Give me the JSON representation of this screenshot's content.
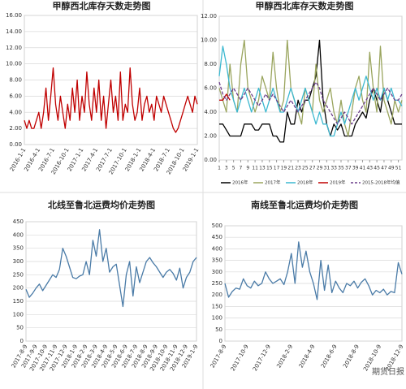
{
  "chart_data": [
    {
      "type": "line",
      "title": "甲醇西北库存天数走势图",
      "color": "#c00000",
      "categories": [
        "2016-1-1",
        null,
        null,
        null,
        null,
        null,
        "2016-4-1",
        null,
        null,
        null,
        null,
        null,
        "2016-7-1",
        null,
        null,
        null,
        null,
        null,
        "2016-10-1",
        null,
        null,
        null,
        null,
        null,
        "2017-1-1",
        null,
        null,
        null,
        null,
        null,
        "2017-4-1",
        null,
        null,
        null,
        null,
        null,
        "2017-7-1",
        null,
        null,
        null,
        null,
        null,
        "2017-10-1",
        null,
        null,
        null,
        null,
        null,
        "2018-1-1",
        null,
        null,
        null,
        null,
        null,
        "2018-4-1",
        null,
        null,
        null,
        null,
        null,
        "2018-7-1",
        null,
        null,
        null,
        null,
        null,
        "2018-10-1",
        null,
        null,
        null,
        null,
        null,
        "2019-1-1"
      ],
      "values": [
        3,
        2,
        3,
        2,
        2,
        3,
        4,
        2,
        4,
        7,
        3,
        6,
        9.5,
        5,
        3,
        6,
        4,
        2,
        5,
        3,
        7,
        4,
        8,
        3,
        6,
        4,
        9,
        5,
        3,
        7,
        4,
        8,
        3,
        6,
        2,
        5,
        8,
        4,
        6,
        3,
        9,
        3,
        5,
        4,
        9.5,
        5,
        3,
        4,
        7,
        3,
        5,
        6,
        4,
        5,
        3,
        6,
        5,
        4,
        6,
        5,
        4,
        3,
        2,
        1.5,
        2,
        3,
        4,
        5,
        6,
        5,
        4,
        6,
        5
      ],
      "ylim": [
        0,
        16
      ],
      "yticks": [
        {
          "value": 0,
          "label": "0.00"
        },
        {
          "value": 2,
          "label": "2.00"
        },
        {
          "value": 4,
          "label": "4.00"
        },
        {
          "value": 6,
          "label": "6.00"
        },
        {
          "value": 8,
          "label": "8.00"
        },
        {
          "value": 10,
          "label": "10.00"
        },
        {
          "value": 12,
          "label": "12.00"
        },
        {
          "value": 14,
          "label": "14.00"
        },
        {
          "value": 16,
          "label": "16.00"
        }
      ],
      "grid": true
    },
    {
      "type": "line",
      "title": "甲醇西北库存天数走势图",
      "x": [
        1,
        2,
        3,
        4,
        5,
        6,
        7,
        8,
        9,
        10,
        11,
        12,
        13,
        14,
        15,
        16,
        17,
        18,
        19,
        20,
        21,
        22,
        23,
        24,
        25,
        26,
        27,
        28,
        29,
        30,
        31,
        32,
        33,
        34,
        35,
        36,
        37,
        38,
        39,
        40,
        41,
        42,
        43,
        44,
        45,
        46,
        47,
        48,
        49,
        50,
        51,
        52
      ],
      "xlim": [
        1,
        52
      ],
      "xticks": [
        1,
        3,
        5,
        7,
        9,
        11,
        13,
        15,
        17,
        19,
        21,
        23,
        25,
        27,
        29,
        31,
        33,
        35,
        37,
        39,
        41,
        43,
        45,
        47,
        49,
        51
      ],
      "ylim": [
        0,
        12
      ],
      "yticks": [
        {
          "value": 0,
          "label": "0.00"
        },
        {
          "value": 2,
          "label": "2.00"
        },
        {
          "value": 4,
          "label": "4.00"
        },
        {
          "value": 6,
          "label": "6.00"
        },
        {
          "value": 8,
          "label": "8.00"
        },
        {
          "value": 10,
          "label": "10.00"
        },
        {
          "value": 12,
          "label": "12.00"
        }
      ],
      "grid": true,
      "series": [
        {
          "name": "2016年",
          "color": "#000000",
          "values": [
            3,
            3,
            2.5,
            2,
            2,
            2,
            2,
            3,
            3,
            3,
            2.5,
            2.5,
            3,
            3,
            3,
            2,
            2,
            1.5,
            1.5,
            4,
            3,
            3,
            5,
            4,
            5,
            5,
            6,
            7,
            10,
            5,
            3,
            2,
            3,
            2.5,
            3,
            2,
            2,
            2,
            3,
            3.5,
            4,
            3.5,
            5,
            6,
            5,
            4,
            6,
            5,
            4,
            3,
            3,
            3
          ]
        },
        {
          "name": "2017年",
          "color": "#9aa55e",
          "values": [
            6,
            5,
            4,
            8,
            5,
            4,
            8,
            10,
            6,
            5,
            4,
            5,
            7,
            6,
            5,
            9,
            6,
            4,
            5,
            10,
            6,
            5,
            4,
            3,
            6,
            5,
            4,
            8,
            5,
            4,
            5,
            6,
            4,
            3,
            5,
            3,
            2,
            4,
            6,
            7,
            5,
            4,
            9,
            6,
            4,
            9.5,
            5,
            4,
            3,
            5,
            4,
            5
          ]
        },
        {
          "name": "2018年",
          "color": "#3cb8d0",
          "values": [
            7,
            9.5,
            8,
            6,
            5,
            4,
            5,
            6,
            5,
            4,
            5,
            6,
            5,
            4,
            5,
            6,
            5,
            4,
            4,
            5,
            6,
            5,
            4,
            5,
            6,
            5,
            4,
            3,
            4,
            3,
            3,
            2,
            2,
            3,
            4,
            3,
            4,
            5,
            6,
            5,
            6,
            7,
            6,
            5,
            6,
            5,
            6,
            5,
            6,
            5,
            5,
            4.5
          ]
        },
        {
          "name": "2019年",
          "color": "#c00000",
          "values": [
            5,
            5,
            5.5,
            5,
            null,
            null,
            null,
            null,
            null,
            null,
            null,
            null,
            null,
            null,
            null,
            null,
            null,
            null,
            null,
            null,
            null,
            null,
            null,
            null,
            null,
            null,
            null,
            null,
            null,
            null,
            null,
            null,
            null,
            null,
            null,
            null,
            null,
            null,
            null,
            null,
            null,
            null,
            null,
            null,
            null,
            null,
            null,
            null,
            null,
            null,
            null,
            null
          ]
        },
        {
          "name": "2015-2018年均值",
          "color": "#6a3d8a",
          "dashed": true,
          "values": [
            6.5,
            5.5,
            5,
            5.5,
            6,
            5.5,
            5,
            5.5,
            6,
            5.5,
            5,
            4.5,
            5,
            5.5,
            5,
            5.5,
            5,
            4.5,
            4,
            4.5,
            5,
            4.5,
            4,
            4.5,
            5,
            5.5,
            6,
            6.5,
            6,
            5,
            4.5,
            4,
            3.5,
            3,
            3.5,
            4,
            3.5,
            3,
            3.5,
            4,
            4.5,
            5,
            5.5,
            6,
            5.5,
            5,
            5.5,
            6,
            5.5,
            5,
            5,
            5.5
          ]
        }
      ]
    },
    {
      "type": "line",
      "title": "北线至鲁北运费均价走势图",
      "color": "#4a7ba7",
      "categories": [
        "2017-8-9",
        null,
        null,
        "2017-9-9",
        null,
        null,
        "2017-10-9",
        null,
        null,
        "2017-11-9",
        null,
        null,
        "2017-12-9",
        null,
        null,
        "2018-1-9",
        null,
        null,
        "2018-2-9",
        null,
        null,
        "2018-3-9",
        null,
        null,
        "2018-4-9",
        null,
        null,
        "2018-5-9",
        null,
        null,
        "2018-6-9",
        null,
        null,
        "2018-7-9",
        null,
        null,
        "2018-8-9",
        null,
        null,
        "2018-9-9",
        null,
        null,
        "2018-10-9",
        null,
        null,
        "2018-11-9",
        null,
        null,
        "2018-12-9",
        null,
        null,
        "2019-1-9"
      ],
      "values": [
        195,
        165,
        180,
        200,
        215,
        190,
        210,
        230,
        250,
        240,
        270,
        350,
        320,
        280,
        240,
        235,
        245,
        250,
        300,
        250,
        380,
        320,
        420,
        300,
        350,
        260,
        280,
        290,
        210,
        130,
        250,
        300,
        170,
        280,
        220,
        260,
        300,
        315,
        295,
        280,
        260,
        240,
        260,
        270,
        255,
        230,
        275,
        200,
        240,
        260,
        300,
        315
      ],
      "ylim": [
        0,
        450
      ],
      "yticks": [
        0,
        50,
        100,
        150,
        200,
        250,
        300,
        350,
        400,
        450
      ],
      "grid": true
    },
    {
      "type": "line",
      "title": "南线至鲁北运费均价走势图",
      "color": "#4a7ba7",
      "categories": [
        "2017-8-9",
        null,
        null,
        null,
        null,
        null,
        "2017-10-9",
        null,
        null,
        null,
        null,
        null,
        "2017-12-9",
        null,
        null,
        null,
        null,
        null,
        "2018-2-9",
        null,
        null,
        null,
        null,
        null,
        "2018-4-9",
        null,
        null,
        null,
        null,
        null,
        "2018-6-9",
        null,
        null,
        null,
        null,
        null,
        "2018-8-9",
        null,
        null,
        null,
        null,
        null,
        "2018-10-9",
        null,
        null,
        null,
        null,
        null,
        "2018-12-9"
      ],
      "values": [
        250,
        190,
        215,
        230,
        225,
        270,
        240,
        230,
        260,
        240,
        250,
        300,
        270,
        250,
        260,
        270,
        245,
        300,
        380,
        250,
        430,
        320,
        390,
        300,
        250,
        180,
        350,
        220,
        330,
        210,
        260,
        230,
        210,
        250,
        240,
        260,
        230,
        255,
        270,
        240,
        200,
        220,
        210,
        225,
        200,
        215,
        210,
        340,
        290
      ],
      "ylim": [
        0,
        500
      ],
      "yticks": [
        0,
        50,
        100,
        150,
        200,
        250,
        300,
        350,
        400,
        450,
        500
      ],
      "grid": true
    }
  ],
  "watermark": "期货日报"
}
